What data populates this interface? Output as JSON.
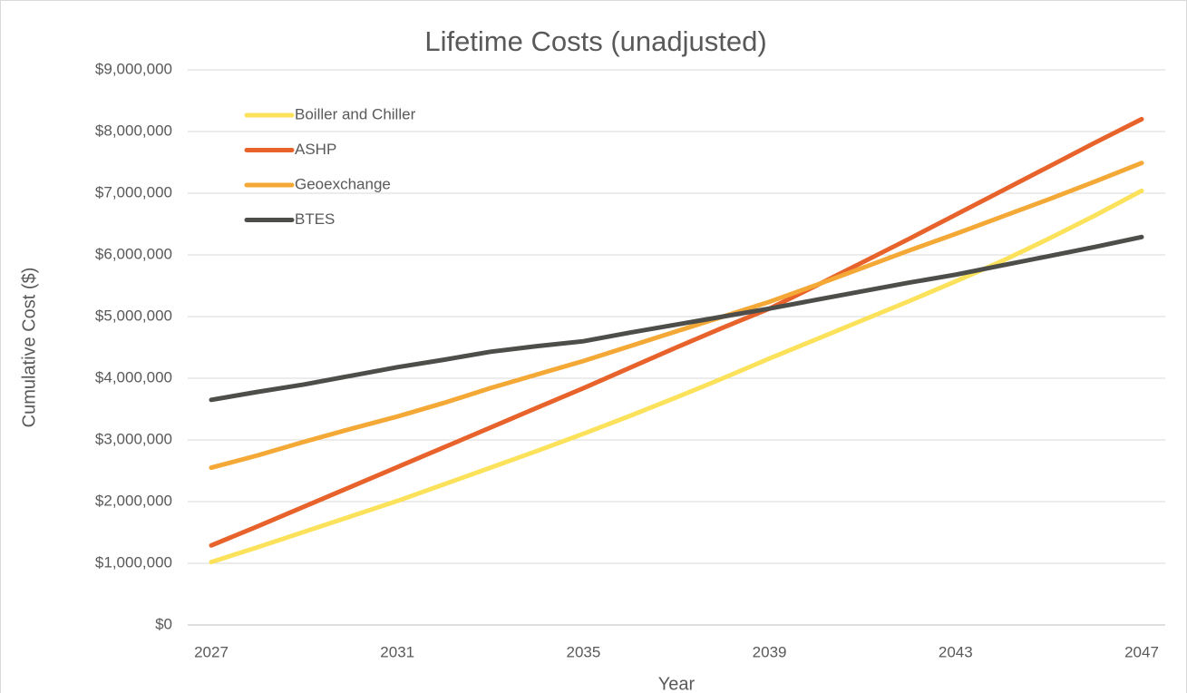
{
  "chart_data": {
    "type": "line",
    "title": "Lifetime Costs (unadjusted)",
    "x_label": "Year",
    "y_label": "Cumulative Cost ($)",
    "x": [
      2027,
      2028,
      2029,
      2030,
      2031,
      2032,
      2033,
      2034,
      2035,
      2036,
      2037,
      2038,
      2039,
      2040,
      2041,
      2042,
      2043,
      2044,
      2045,
      2046,
      2047
    ],
    "xlim": [
      2027,
      2047
    ],
    "xticks": [
      2027,
      2031,
      2035,
      2039,
      2043,
      2047
    ],
    "ylim": [
      0,
      9000000
    ],
    "yticks": [
      {
        "value": 0,
        "label": "$0"
      },
      {
        "value": 1000000,
        "label": "$1,000,000"
      },
      {
        "value": 2000000,
        "label": "$2,000,000"
      },
      {
        "value": 3000000,
        "label": "$3,000,000"
      },
      {
        "value": 4000000,
        "label": "$4,000,000"
      },
      {
        "value": 5000000,
        "label": "$5,000,000"
      },
      {
        "value": 6000000,
        "label": "$6,000,000"
      },
      {
        "value": 7000000,
        "label": "$7,000,000"
      },
      {
        "value": 8000000,
        "label": "$8,000,000"
      },
      {
        "value": 9000000,
        "label": "$9,000,000"
      }
    ],
    "grid": true,
    "legend": "upper left",
    "series": [
      {
        "name": "Boiller and Chiller",
        "color": "#fbe25a",
        "values": [
          1020000,
          1260000,
          1510000,
          1760000,
          2010000,
          2280000,
          2550000,
          2820000,
          3100000,
          3390000,
          3690000,
          4000000,
          4320000,
          4630000,
          4940000,
          5250000,
          5570000,
          5900000,
          6260000,
          6640000,
          7040000
        ]
      },
      {
        "name": "ASHP",
        "color": "#e8632b",
        "values": [
          1290000,
          1600000,
          1920000,
          2240000,
          2560000,
          2880000,
          3200000,
          3520000,
          3840000,
          4170000,
          4500000,
          4820000,
          5130000,
          5500000,
          5880000,
          6260000,
          6650000,
          7040000,
          7430000,
          7820000,
          8200000
        ]
      },
      {
        "name": "Geoexchange",
        "color": "#f4a836",
        "values": [
          2550000,
          2750000,
          2970000,
          3180000,
          3380000,
          3600000,
          3840000,
          4060000,
          4280000,
          4520000,
          4760000,
          5000000,
          5240000,
          5510000,
          5790000,
          6070000,
          6340000,
          6620000,
          6900000,
          7190000,
          7490000
        ]
      },
      {
        "name": "BTES",
        "color": "#4d4d4a",
        "values": [
          3650000,
          3780000,
          3900000,
          4040000,
          4180000,
          4300000,
          4430000,
          4520000,
          4600000,
          4740000,
          4870000,
          5000000,
          5130000,
          5270000,
          5410000,
          5550000,
          5680000,
          5830000,
          5980000,
          6130000,
          6290000
        ]
      }
    ]
  }
}
